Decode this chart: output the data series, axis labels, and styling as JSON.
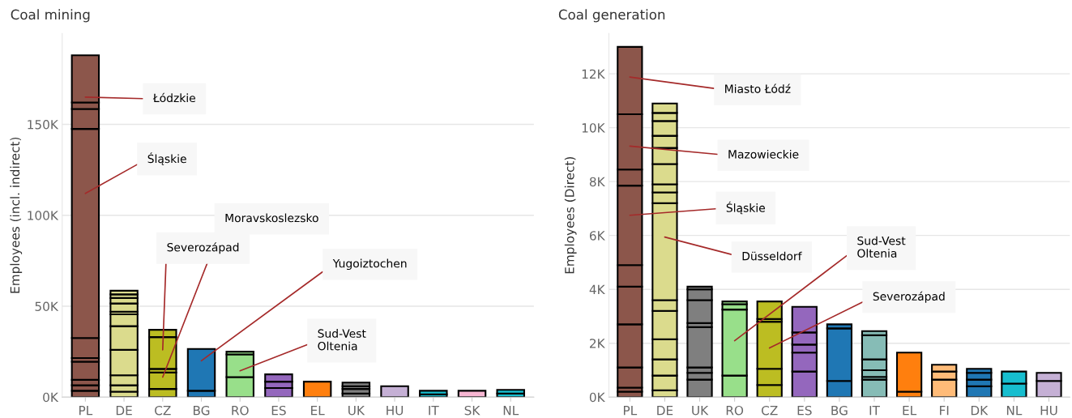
{
  "chart_data": [
    {
      "type": "bar",
      "stacked": true,
      "title": "Coal mining",
      "ylabel": "Employees (incl. indirect)",
      "categories": [
        "PL",
        "DE",
        "CZ",
        "BG",
        "RO",
        "ES",
        "EL",
        "UK",
        "HU",
        "IT",
        "SK",
        "NL"
      ],
      "series": [
        {
          "values": [
            3.5,
            3,
            4.5,
            3.5,
            11,
            5,
            8.5,
            2,
            6,
            1.5,
            3.5,
            2
          ],
          "colors": [
            "#8c564b",
            "#dbdb8d",
            "#bcbd22",
            "#1f77b4",
            "#98df8a",
            "#9467bd",
            "#ff7f0e",
            "#7f7f7f",
            "#c5b0d5",
            "#17becf",
            "#f7b6d2",
            "#17becf"
          ]
        },
        {
          "values": [
            3,
            3.5,
            9,
            23,
            12.5,
            3.5,
            null,
            2.5,
            null,
            2,
            null,
            2
          ],
          "colors": [
            "#8c564b",
            "#dbdb8d",
            "#bcbd22",
            "#1f77b4",
            "#98df8a",
            "#9467bd",
            null,
            "#7f7f7f",
            null,
            "#17becf",
            null,
            "#17becf"
          ]
        },
        {
          "values": [
            3,
            5.5,
            2,
            null,
            1.5,
            4,
            null,
            1.5,
            null,
            null,
            null,
            null
          ],
          "colors": [
            "#8c564b",
            "#dbdb8d",
            "#bcbd22",
            null,
            "#98df8a",
            "#9467bd",
            null,
            "#7f7f7f",
            null,
            null,
            null,
            null
          ]
        },
        {
          "values": [
            10,
            14,
            17.5,
            null,
            null,
            null,
            null,
            2,
            null,
            null,
            null,
            null
          ],
          "colors": [
            "#8c564b",
            "#dbdb8d",
            "#bcbd22",
            null,
            null,
            null,
            null,
            "#7f7f7f",
            null,
            null,
            null,
            null
          ]
        },
        {
          "values": [
            2,
            13,
            4,
            null,
            null,
            null,
            null,
            null,
            null,
            null,
            null,
            null
          ],
          "colors": [
            "#8c564b",
            "#dbdb8d",
            "#bcbd22",
            null,
            null,
            null,
            null,
            null,
            null,
            null,
            null,
            null
          ]
        },
        {
          "values": [
            11,
            6.5,
            null,
            null,
            null,
            null,
            null,
            null,
            null,
            null,
            null,
            null
          ],
          "colors": [
            "#8c564b",
            "#dbdb8d",
            null,
            null,
            null,
            null,
            null,
            null,
            null,
            null,
            null,
            null
          ]
        },
        {
          "values": [
            115,
            1.5,
            null,
            null,
            null,
            null,
            null,
            null,
            null,
            null,
            null,
            null
          ],
          "colors": [
            "#8c564b",
            "#dbdb8d",
            null,
            null,
            null,
            null,
            null,
            null,
            null,
            null,
            null,
            null
          ]
        },
        {
          "values": [
            11,
            4.5,
            null,
            null,
            null,
            null,
            null,
            null,
            null,
            null,
            null,
            null
          ],
          "colors": [
            "#8c564b",
            "#dbdb8d",
            null,
            null,
            null,
            null,
            null,
            null,
            null,
            null,
            null,
            null
          ]
        },
        {
          "values": [
            3.5,
            3,
            null,
            null,
            null,
            null,
            null,
            null,
            null,
            null,
            null,
            null
          ],
          "colors": [
            "#8c564b",
            "#dbdb8d",
            null,
            null,
            null,
            null,
            null,
            null,
            null,
            null,
            null,
            null
          ]
        },
        {
          "values": [
            26,
            2,
            null,
            null,
            null,
            null,
            null,
            null,
            null,
            null,
            null,
            null
          ],
          "colors": [
            "#8c564b",
            "#dbdb8d",
            null,
            null,
            null,
            null,
            null,
            null,
            null,
            null,
            null,
            null
          ]
        },
        {
          "values": [
            null,
            2,
            null,
            null,
            null,
            null,
            null,
            null,
            null,
            null,
            null,
            null
          ],
          "color": "#dbdb8d"
        }
      ],
      "ylim": [
        0,
        200
      ],
      "yticks": [
        {
          "value": 0,
          "label": "0K"
        },
        {
          "value": 50,
          "label": "50K"
        },
        {
          "value": 100,
          "label": "100K"
        },
        {
          "value": 150,
          "label": "150K"
        }
      ],
      "grid": "y",
      "annotations": [
        "Łódzkie",
        "Śląskie",
        "Moravskoslezsko",
        "Severozápad",
        "Yugoiztochen",
        "Sud-Vest\nOltenia"
      ]
    },
    {
      "type": "bar",
      "stacked": true,
      "title": "Coal generation",
      "ylabel": "Employees (Direct)",
      "categories": [
        "PL",
        "DE",
        "UK",
        "RO",
        "CZ",
        "ES",
        "BG",
        "IT",
        "EL",
        "FI",
        "DK",
        "NL",
        "HU"
      ],
      "series": [
        {
          "values": [
            0.2,
            0.25,
            0.65,
            0.8,
            0.45,
            0.95,
            0.6,
            0.65,
            0.2,
            0.65,
            0.4,
            0.5,
            0.6
          ],
          "colors": [
            "#8c564b",
            "#dbdb8d",
            "#7f7f7f",
            "#98df8a",
            "#bcbd22",
            "#9467bd",
            "#1f77b4",
            "#86bcb6",
            "#ff7f0e",
            "#ffbb78",
            "#1f77b4",
            "#17becf",
            "#c5b0d5"
          ]
        },
        {
          "values": [
            0.15,
            0.55,
            0.25,
            2.45,
            0.6,
            0.7,
            1.95,
            0.1,
            1.45,
            0.3,
            0.25,
            0.45,
            0.3
          ],
          "colors": [
            "#8c564b",
            "#dbdb8d",
            "#7f7f7f",
            "#98df8a",
            "#bcbd22",
            "#9467bd",
            "#1f77b4",
            "#86bcb6",
            "#ff7f0e",
            "#ffbb78",
            "#1f77b4",
            "#17becf",
            "#c5b0d5"
          ]
        },
        {
          "values": [
            0.75,
            0.6,
            0.2,
            0.2,
            1.75,
            0.3,
            0.15,
            0.25,
            null,
            0.25,
            0.25,
            null,
            null
          ],
          "colors": [
            "#8c564b",
            "#dbdb8d",
            "#7f7f7f",
            "#98df8a",
            "#bcbd22",
            "#9467bd",
            "#1f77b4",
            "#86bcb6",
            null,
            "#ffbb78",
            "#1f77b4",
            null,
            null
          ]
        },
        {
          "values": [
            1.6,
            0.75,
            1.5,
            0.1,
            0.1,
            0.45,
            null,
            0.4,
            null,
            null,
            0.15,
            null,
            null
          ],
          "colors": [
            "#8c564b",
            "#dbdb8d",
            "#7f7f7f",
            "#98df8a",
            "#bcbd22",
            "#9467bd",
            null,
            "#86bcb6",
            null,
            null,
            "#1f77b4",
            null,
            null
          ]
        },
        {
          "values": [
            1.4,
            1.05,
            0.15,
            null,
            0.65,
            0.95,
            null,
            0.9,
            null,
            null,
            null,
            null,
            null
          ],
          "colors": [
            "#8c564b",
            "#dbdb8d",
            "#7f7f7f",
            null,
            "#bcbd22",
            "#9467bd",
            null,
            "#86bcb6",
            null,
            null,
            null,
            null,
            null
          ]
        },
        {
          "values": [
            0.8,
            0.4,
            0.85,
            null,
            null,
            null,
            null,
            0.15,
            null,
            null,
            null,
            null,
            null
          ],
          "colors": [
            "#8c564b",
            "#dbdb8d",
            "#7f7f7f",
            null,
            null,
            null,
            null,
            "#86bcb6",
            null,
            null,
            null,
            null,
            null
          ]
        },
        {
          "values": [
            2.95,
            3.6,
            0.4,
            null,
            null,
            null,
            null,
            null,
            null,
            null,
            null,
            null,
            null
          ],
          "colors": [
            "#8c564b",
            "#dbdb8d",
            "#7f7f7f",
            null,
            null,
            null,
            null,
            null,
            null,
            null,
            null,
            null,
            null
          ]
        },
        {
          "values": [
            0.6,
            0.4,
            0.1,
            null,
            null,
            null,
            null,
            null,
            null,
            null,
            null,
            null,
            null
          ],
          "colors": [
            "#8c564b",
            "#dbdb8d",
            "#7f7f7f",
            null,
            null,
            null,
            null,
            null,
            null,
            null,
            null,
            null,
            null
          ]
        },
        {
          "values": [
            2.05,
            0.3,
            null,
            null,
            null,
            null,
            null,
            null,
            null,
            null,
            null,
            null,
            null
          ],
          "colors": [
            "#8c564b",
            "#dbdb8d",
            null,
            null,
            null,
            null,
            null,
            null,
            null,
            null,
            null,
            null,
            null
          ]
        },
        {
          "values": [
            2.5,
            0.75,
            null,
            null,
            null,
            null,
            null,
            null,
            null,
            null,
            null,
            null,
            null
          ],
          "colors": [
            "#8c564b",
            "#dbdb8d",
            null,
            null,
            null,
            null,
            null,
            null,
            null,
            null,
            null,
            null,
            null
          ]
        },
        {
          "values": [
            null,
            0.6,
            null,
            null,
            null,
            null,
            null,
            null,
            null,
            null,
            null,
            null,
            null
          ],
          "color": "#dbdb8d"
        },
        {
          "values": [
            null,
            0.45,
            null,
            null,
            null,
            null,
            null,
            null,
            null,
            null,
            null,
            null,
            null
          ],
          "color": "#dbdb8d"
        },
        {
          "values": [
            null,
            0.55,
            null,
            null,
            null,
            null,
            null,
            null,
            null,
            null,
            null,
            null,
            null
          ],
          "color": "#dbdb8d"
        },
        {
          "values": [
            null,
            0.3,
            null,
            null,
            null,
            null,
            null,
            null,
            null,
            null,
            null,
            null,
            null
          ],
          "color": "#dbdb8d"
        },
        {
          "values": [
            null,
            0.35,
            null,
            null,
            null,
            null,
            null,
            null,
            null,
            null,
            null,
            null,
            null
          ],
          "color": "#dbdb8d"
        }
      ],
      "ylim": [
        0,
        13.5
      ],
      "yticks": [
        {
          "value": 0,
          "label": "0K"
        },
        {
          "value": 2,
          "label": "2K"
        },
        {
          "value": 4,
          "label": "4K"
        },
        {
          "value": 6,
          "label": "6K"
        },
        {
          "value": 8,
          "label": "8K"
        },
        {
          "value": 10,
          "label": "10K"
        },
        {
          "value": 12,
          "label": "12K"
        }
      ],
      "grid": "y",
      "annotations": [
        "Miasto Łódź",
        "Mazowieckie",
        "Śląskie",
        "Düsseldorf",
        "Sud-Vest\nOltenia",
        "Severozápad"
      ]
    }
  ]
}
